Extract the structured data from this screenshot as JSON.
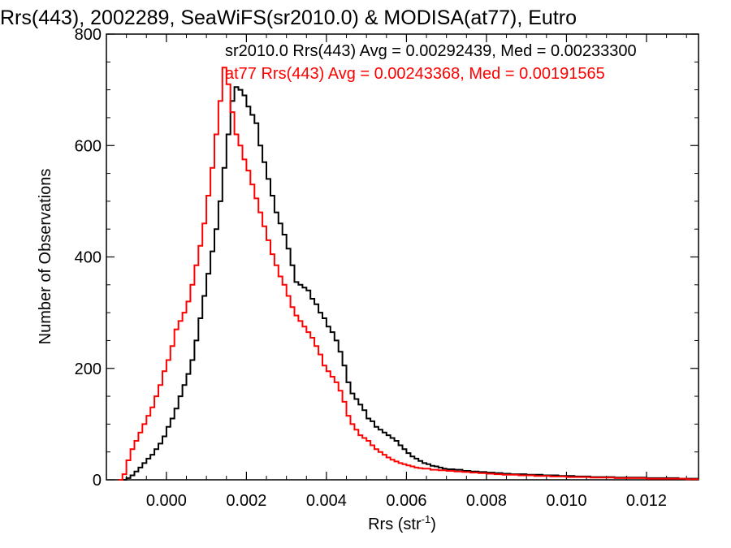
{
  "chart_data": {
    "type": "histogram-step",
    "title": "Rrs(443), 2002289, SeaWiFS(sr2010.0) & MODISA(at77), Eutro",
    "xlabel": "Rrs (str",
    "xlabel_sup": "-1",
    "xlabel_close": ")",
    "ylabel": "Number of Observations",
    "xlim": [
      -0.0015,
      0.0133
    ],
    "ylim": [
      0,
      800
    ],
    "xticks": [
      0.0,
      0.002,
      0.004,
      0.006,
      0.008,
      0.01,
      0.012
    ],
    "xtick_labels": [
      "0.000",
      "0.002",
      "0.004",
      "0.006",
      "0.008",
      "0.010",
      "0.012"
    ],
    "yticks": [
      0,
      200,
      400,
      600,
      800
    ],
    "ytick_labels": [
      "0",
      "200",
      "400",
      "600",
      "800"
    ],
    "grid": false,
    "series": [
      {
        "name": "sr2010.0",
        "color": "#000000",
        "stat_label": "sr2010.0 Rrs(443) Avg = 0.00292439, Med = 0.00233300",
        "points": [
          [
            -0.0012,
            0
          ],
          [
            -0.001,
            3
          ],
          [
            -0.0009,
            8
          ],
          [
            -0.0008,
            15
          ],
          [
            -0.0007,
            22
          ],
          [
            -0.0006,
            30
          ],
          [
            -0.0005,
            38
          ],
          [
            -0.0004,
            45
          ],
          [
            -0.0003,
            55
          ],
          [
            -0.0002,
            65
          ],
          [
            -0.0001,
            78
          ],
          [
            0.0,
            95
          ],
          [
            0.0001,
            110
          ],
          [
            0.0002,
            128
          ],
          [
            0.0003,
            150
          ],
          [
            0.0004,
            170
          ],
          [
            0.0005,
            190
          ],
          [
            0.0006,
            215
          ],
          [
            0.0007,
            250
          ],
          [
            0.0008,
            290
          ],
          [
            0.0009,
            330
          ],
          [
            0.001,
            370
          ],
          [
            0.0011,
            410
          ],
          [
            0.0012,
            450
          ],
          [
            0.0013,
            500
          ],
          [
            0.0014,
            560
          ],
          [
            0.0015,
            620
          ],
          [
            0.0016,
            680
          ],
          [
            0.0017,
            705
          ],
          [
            0.0018,
            700
          ],
          [
            0.0019,
            690
          ],
          [
            0.002,
            670
          ],
          [
            0.0021,
            655
          ],
          [
            0.0022,
            640
          ],
          [
            0.0023,
            600
          ],
          [
            0.0024,
            570
          ],
          [
            0.0025,
            540
          ],
          [
            0.0026,
            510
          ],
          [
            0.0027,
            480
          ],
          [
            0.0028,
            460
          ],
          [
            0.0029,
            440
          ],
          [
            0.003,
            415
          ],
          [
            0.0031,
            385
          ],
          [
            0.0032,
            355
          ],
          [
            0.0033,
            350
          ],
          [
            0.0034,
            345
          ],
          [
            0.0035,
            340
          ],
          [
            0.0036,
            325
          ],
          [
            0.0037,
            315
          ],
          [
            0.0038,
            300
          ],
          [
            0.0039,
            290
          ],
          [
            0.004,
            275
          ],
          [
            0.0041,
            265
          ],
          [
            0.0042,
            250
          ],
          [
            0.0043,
            230
          ],
          [
            0.0044,
            205
          ],
          [
            0.0045,
            175
          ],
          [
            0.0046,
            155
          ],
          [
            0.0047,
            145
          ],
          [
            0.0048,
            135
          ],
          [
            0.0049,
            125
          ],
          [
            0.005,
            110
          ],
          [
            0.0051,
            105
          ],
          [
            0.0052,
            95
          ],
          [
            0.0053,
            90
          ],
          [
            0.0054,
            85
          ],
          [
            0.0055,
            80
          ],
          [
            0.0056,
            75
          ],
          [
            0.0057,
            70
          ],
          [
            0.0058,
            62
          ],
          [
            0.0059,
            55
          ],
          [
            0.006,
            48
          ],
          [
            0.0061,
            42
          ],
          [
            0.0062,
            38
          ],
          [
            0.0063,
            34
          ],
          [
            0.0064,
            30
          ],
          [
            0.0065,
            28
          ],
          [
            0.0066,
            25
          ],
          [
            0.0067,
            24
          ],
          [
            0.0068,
            22
          ],
          [
            0.0069,
            20
          ],
          [
            0.007,
            19
          ],
          [
            0.0072,
            18
          ],
          [
            0.0074,
            16
          ],
          [
            0.0076,
            15
          ],
          [
            0.0078,
            14
          ],
          [
            0.008,
            13
          ],
          [
            0.0082,
            12
          ],
          [
            0.0084,
            11
          ],
          [
            0.0086,
            10
          ],
          [
            0.0088,
            10
          ],
          [
            0.009,
            9
          ],
          [
            0.0092,
            9
          ],
          [
            0.0094,
            8
          ],
          [
            0.0096,
            8
          ],
          [
            0.0098,
            7
          ],
          [
            0.01,
            7
          ],
          [
            0.0102,
            6
          ],
          [
            0.0104,
            6
          ],
          [
            0.0106,
            5
          ],
          [
            0.0108,
            5
          ],
          [
            0.011,
            5
          ],
          [
            0.0112,
            4
          ],
          [
            0.0114,
            4
          ],
          [
            0.0116,
            4
          ],
          [
            0.0118,
            4
          ],
          [
            0.012,
            3
          ],
          [
            0.0122,
            3
          ],
          [
            0.0124,
            3
          ],
          [
            0.0126,
            3
          ],
          [
            0.0128,
            2
          ],
          [
            0.013,
            2
          ],
          [
            0.0132,
            2
          ]
        ]
      },
      {
        "name": "at77",
        "color": "#ff0000",
        "stat_label": "at77 Rrs(443) Avg = 0.00243368, Med = 0.00191565",
        "points": [
          [
            -0.0012,
            0
          ],
          [
            -0.0011,
            10
          ],
          [
            -0.001,
            35
          ],
          [
            -0.0009,
            55
          ],
          [
            -0.0008,
            70
          ],
          [
            -0.0007,
            85
          ],
          [
            -0.0006,
            100
          ],
          [
            -0.0005,
            115
          ],
          [
            -0.0004,
            130
          ],
          [
            -0.0003,
            150
          ],
          [
            -0.0002,
            170
          ],
          [
            -0.0001,
            195
          ],
          [
            0.0,
            215
          ],
          [
            0.0001,
            240
          ],
          [
            0.0002,
            270
          ],
          [
            0.0003,
            285
          ],
          [
            0.0004,
            300
          ],
          [
            0.0005,
            320
          ],
          [
            0.0006,
            350
          ],
          [
            0.0007,
            385
          ],
          [
            0.0008,
            420
          ],
          [
            0.0009,
            460
          ],
          [
            0.001,
            510
          ],
          [
            0.0011,
            560
          ],
          [
            0.0012,
            620
          ],
          [
            0.0013,
            680
          ],
          [
            0.0014,
            740
          ],
          [
            0.0015,
            710
          ],
          [
            0.0016,
            660
          ],
          [
            0.0017,
            620
          ],
          [
            0.0018,
            600
          ],
          [
            0.0019,
            575
          ],
          [
            0.002,
            555
          ],
          [
            0.0021,
            530
          ],
          [
            0.0022,
            505
          ],
          [
            0.0023,
            480
          ],
          [
            0.0024,
            455
          ],
          [
            0.0025,
            430
          ],
          [
            0.0026,
            405
          ],
          [
            0.0027,
            385
          ],
          [
            0.0028,
            365
          ],
          [
            0.0029,
            350
          ],
          [
            0.003,
            330
          ],
          [
            0.0031,
            310
          ],
          [
            0.0032,
            295
          ],
          [
            0.0033,
            285
          ],
          [
            0.0034,
            275
          ],
          [
            0.0035,
            265
          ],
          [
            0.0036,
            255
          ],
          [
            0.0037,
            240
          ],
          [
            0.0038,
            225
          ],
          [
            0.0039,
            205
          ],
          [
            0.004,
            195
          ],
          [
            0.0041,
            185
          ],
          [
            0.0042,
            175
          ],
          [
            0.0043,
            160
          ],
          [
            0.0044,
            140
          ],
          [
            0.0045,
            115
          ],
          [
            0.0046,
            100
          ],
          [
            0.0047,
            90
          ],
          [
            0.0048,
            80
          ],
          [
            0.0049,
            75
          ],
          [
            0.005,
            70
          ],
          [
            0.0051,
            62
          ],
          [
            0.0052,
            55
          ],
          [
            0.0053,
            50
          ],
          [
            0.0054,
            45
          ],
          [
            0.0055,
            40
          ],
          [
            0.0056,
            36
          ],
          [
            0.0057,
            33
          ],
          [
            0.0058,
            30
          ],
          [
            0.0059,
            28
          ],
          [
            0.006,
            26
          ],
          [
            0.0061,
            24
          ],
          [
            0.0062,
            22
          ],
          [
            0.0063,
            21
          ],
          [
            0.0064,
            20
          ],
          [
            0.0066,
            18
          ],
          [
            0.0068,
            17
          ],
          [
            0.007,
            16
          ],
          [
            0.0072,
            15
          ],
          [
            0.0074,
            14
          ],
          [
            0.0076,
            13
          ],
          [
            0.0078,
            12
          ],
          [
            0.008,
            11
          ],
          [
            0.0082,
            10
          ],
          [
            0.0084,
            9
          ],
          [
            0.0086,
            9
          ],
          [
            0.0088,
            8
          ],
          [
            0.009,
            8
          ],
          [
            0.0092,
            7
          ],
          [
            0.0094,
            7
          ],
          [
            0.0096,
            6
          ],
          [
            0.0098,
            6
          ],
          [
            0.01,
            5
          ],
          [
            0.0102,
            5
          ],
          [
            0.0104,
            5
          ],
          [
            0.0106,
            4
          ],
          [
            0.0108,
            4
          ],
          [
            0.011,
            4
          ],
          [
            0.0112,
            3
          ],
          [
            0.0114,
            3
          ],
          [
            0.0116,
            3
          ],
          [
            0.0118,
            3
          ],
          [
            0.012,
            2
          ],
          [
            0.0122,
            2
          ],
          [
            0.0124,
            2
          ],
          [
            0.0126,
            2
          ],
          [
            0.0128,
            2
          ],
          [
            0.013,
            1
          ],
          [
            0.0132,
            1
          ]
        ]
      }
    ]
  }
}
